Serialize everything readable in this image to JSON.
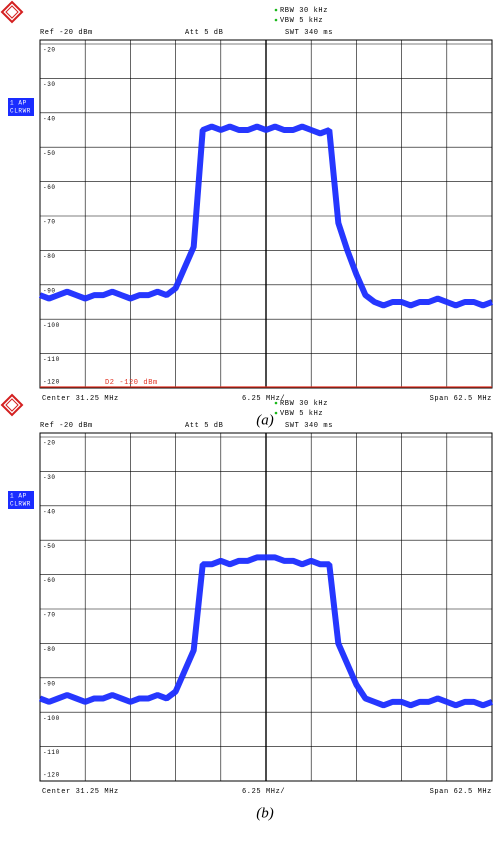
{
  "chart_data": [
    {
      "type": "line",
      "caption": "(a)",
      "rbw": "RBW 30 kHz",
      "vbw": "VBW 5 kHz",
      "swt": "SWT 340 ms",
      "ref": "Ref -20 dBm",
      "att": "Att 5 dB",
      "trace_info": [
        "1 AP",
        "CLRWR"
      ],
      "center": "Center 31.25 MHz",
      "division": "6.25 MHz/",
      "span": "Span 62.5 MHz",
      "display_line": {
        "label": "D2 -120 dBm",
        "value": -120,
        "color": "#e03020"
      },
      "xlim": [
        0,
        62.5
      ],
      "xticks": [
        0,
        6.25,
        12.5,
        18.75,
        25,
        31.25,
        37.5,
        43.75,
        50,
        56.25,
        62.5
      ],
      "ylim": [
        -120,
        -20
      ],
      "yticks": [
        -20,
        -30,
        -40,
        -50,
        -60,
        -70,
        -80,
        -90,
        -100,
        -110,
        -120
      ],
      "grid": true,
      "x": [
        0,
        1.25,
        2.5,
        3.75,
        5,
        6.25,
        7.5,
        8.75,
        10,
        11.25,
        12.5,
        13.75,
        15,
        16.25,
        17.5,
        18.75,
        20,
        21.25,
        22.5,
        23.75,
        25,
        26.25,
        27.5,
        28.75,
        30,
        31.25,
        32.5,
        33.75,
        35,
        36.25,
        37.5,
        38.75,
        40,
        41.25,
        42.5,
        43.75,
        45,
        46.25,
        47.5,
        48.75,
        50,
        51.25,
        52.5,
        53.75,
        55,
        56.25,
        57.5,
        58.75,
        60,
        61.25,
        62.5
      ],
      "series": [
        {
          "color": "#1a2cff",
          "values": [
            -93,
            -94,
            -93,
            -92,
            -93,
            -94,
            -93,
            -93,
            -92,
            -93,
            -94,
            -93,
            -93,
            -92,
            -93,
            -91,
            -85,
            -79,
            -45,
            -44,
            -45,
            -44,
            -45,
            -45,
            -44,
            -45,
            -44,
            -45,
            -45,
            -44,
            -45,
            -46,
            -45,
            -72,
            -80,
            -87,
            -93,
            -95,
            -96,
            -95,
            -95,
            -96,
            -95,
            -95,
            -94,
            -95,
            -96,
            -95,
            -95,
            -96,
            -95
          ]
        }
      ]
    },
    {
      "type": "line",
      "caption": "(b)",
      "rbw": "RBW 30 kHz",
      "vbw": "VBW 5 kHz",
      "swt": "SWT 340 ms",
      "ref": "Ref -20 dBm",
      "att": "Att 5 dB",
      "trace_info": [
        "1 AP",
        "CLRWR"
      ],
      "center": "Center 31.25 MHz",
      "division": "6.25 MHz/",
      "span": "Span 62.5 MHz",
      "xlim": [
        0,
        62.5
      ],
      "xticks": [
        0,
        6.25,
        12.5,
        18.75,
        25,
        31.25,
        37.5,
        43.75,
        50,
        56.25,
        62.5
      ],
      "ylim": [
        -120,
        -20
      ],
      "yticks": [
        -20,
        -30,
        -40,
        -50,
        -60,
        -70,
        -80,
        -90,
        -100,
        -110,
        -120
      ],
      "grid": true,
      "x": [
        0,
        1.25,
        2.5,
        3.75,
        5,
        6.25,
        7.5,
        8.75,
        10,
        11.25,
        12.5,
        13.75,
        15,
        16.25,
        17.5,
        18.75,
        20,
        21.25,
        22.5,
        23.75,
        25,
        26.25,
        27.5,
        28.75,
        30,
        31.25,
        32.5,
        33.75,
        35,
        36.25,
        37.5,
        38.75,
        40,
        41.25,
        42.5,
        43.75,
        45,
        46.25,
        47.5,
        48.75,
        50,
        51.25,
        52.5,
        53.75,
        55,
        56.25,
        57.5,
        58.75,
        60,
        61.25,
        62.5
      ],
      "series": [
        {
          "color": "#1a2cff",
          "values": [
            -96,
            -97,
            -96,
            -95,
            -96,
            -97,
            -96,
            -96,
            -95,
            -96,
            -97,
            -96,
            -96,
            -95,
            -96,
            -94,
            -88,
            -82,
            -57,
            -57,
            -56,
            -57,
            -56,
            -56,
            -55,
            -55,
            -55,
            -56,
            -56,
            -57,
            -56,
            -57,
            -57,
            -80,
            -86,
            -92,
            -96,
            -97,
            -98,
            -97,
            -97,
            -98,
            -97,
            -97,
            -96,
            -97,
            -98,
            -97,
            -97,
            -98,
            -97
          ]
        }
      ]
    }
  ]
}
